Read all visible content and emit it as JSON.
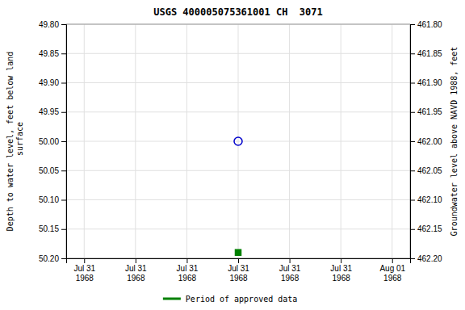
{
  "chart_data": {
    "type": "scatter",
    "title": "USGS 400005075361001 CH  3071",
    "y_label": "Depth to water level, feet below land\n surface",
    "y2_label": "Groundwater level above NAVD 1988, feet",
    "categories": [
      "Jul 31\n1968",
      "Jul 31\n1968",
      "Jul 31\n1968",
      "Jul 31\n1968",
      "Jul 31\n1968",
      "Jul 31\n1968",
      "Aug 01\n1968"
    ],
    "series": [
      {
        "color": "#0000cc",
        "marker": "circle-open",
        "values": [
          null,
          null,
          null,
          50,
          null,
          null,
          null
        ]
      },
      {
        "name": "Period of approved data",
        "color": "#008000",
        "marker": "square",
        "values": [
          null,
          null,
          null,
          50.19,
          null,
          null,
          null
        ]
      }
    ],
    "ylim": [
      50.2,
      49.8
    ],
    "yticks": [
      {
        "value": 49.8,
        "label": "49.80"
      },
      {
        "value": 49.85,
        "label": "49.85"
      },
      {
        "value": 49.9,
        "label": "49.90"
      },
      {
        "value": 49.95,
        "label": "49.95"
      },
      {
        "value": 50,
        "label": "50.00"
      },
      {
        "value": 50.05,
        "label": "50.05"
      },
      {
        "value": 50.1,
        "label": "50.10"
      },
      {
        "value": 50.15,
        "label": "50.15"
      },
      {
        "value": 50.2,
        "label": "50.20"
      }
    ],
    "y2lim": [
      462.2,
      461.8
    ],
    "y2ticks": [
      {
        "value": 462.2,
        "label": "462.20"
      },
      {
        "value": 462.15,
        "label": "462.15"
      },
      {
        "value": 462.1,
        "label": "462.10"
      },
      {
        "value": 462.05,
        "label": "462.05"
      },
      {
        "value": 462,
        "label": "462.00"
      },
      {
        "value": 461.95,
        "label": "461.95"
      },
      {
        "value": 461.9,
        "label": "461.90"
      },
      {
        "value": 461.85,
        "label": "461.85"
      },
      {
        "value": 461.8,
        "label": "461.80"
      }
    ],
    "grid": true,
    "legend": "bottom"
  }
}
